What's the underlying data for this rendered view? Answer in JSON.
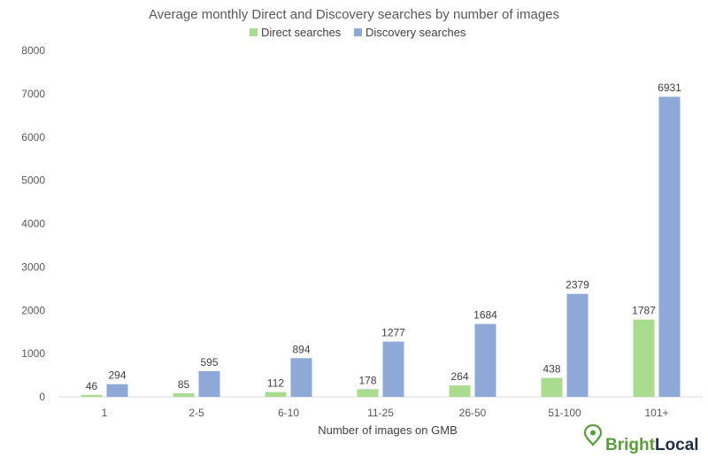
{
  "chart_data": {
    "type": "bar",
    "title": "Average monthly Direct and Discovery searches by number of images",
    "xlabel": "Number of images on GMB",
    "ylabel": "",
    "ylim": [
      0,
      8000
    ],
    "yticks": [
      0,
      1000,
      2000,
      3000,
      4000,
      5000,
      6000,
      7000,
      8000
    ],
    "categories": [
      "1",
      "2-5",
      "6-10",
      "11-25",
      "26-50",
      "51-100",
      "101+"
    ],
    "series": [
      {
        "name": "Direct searches",
        "color": "#a9dc8e",
        "values": [
          46,
          85,
          112,
          178,
          264,
          438,
          1787
        ]
      },
      {
        "name": "Discovery searches",
        "color": "#8ea9d7",
        "values": [
          294,
          595,
          894,
          1277,
          1684,
          2379,
          6931
        ]
      }
    ],
    "grid": false,
    "legend_position": "top"
  },
  "brand": {
    "name": "BrightLocal",
    "name_part1": "Bright",
    "name_part2": "Local",
    "icon": "map-pin-icon",
    "color_part1": "#5a9e3a",
    "color_part2": "#1f2f4a"
  }
}
